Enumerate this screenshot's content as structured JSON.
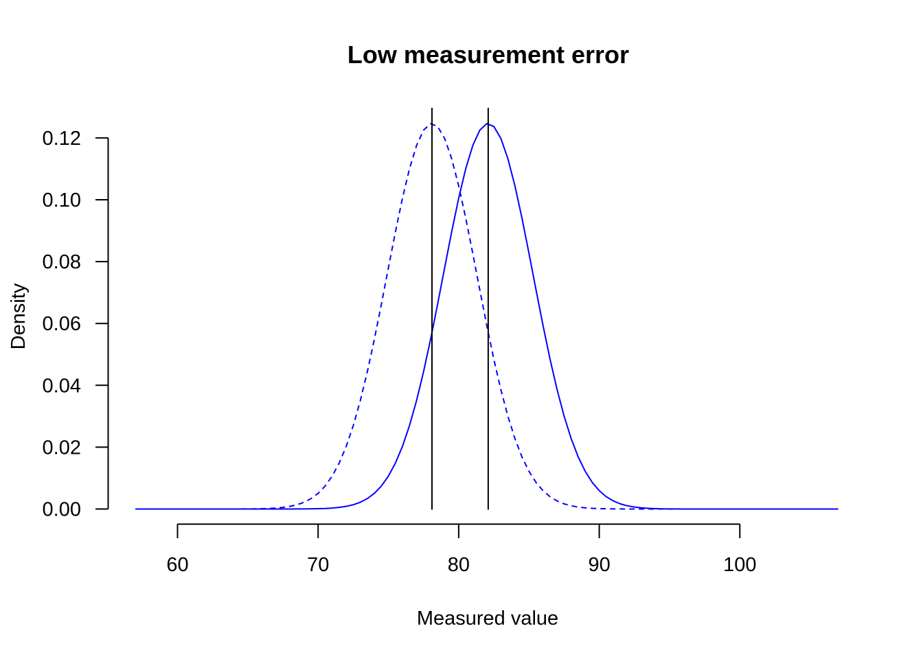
{
  "chart_data": {
    "type": "line",
    "title": "Low measurement error",
    "xlabel": "Measured value",
    "ylabel": "Density",
    "xlim": [
      57,
      107
    ],
    "ylim": [
      0,
      0.125
    ],
    "x_ticks": [
      "60",
      "70",
      "80",
      "90",
      "100"
    ],
    "y_ticks": [
      "0.00",
      "0.02",
      "0.04",
      "0.06",
      "0.08",
      "0.10",
      "0.12"
    ],
    "grid": false,
    "legend": "none",
    "colors": {
      "series": "#0000ff",
      "vlines": "#000000",
      "axes": "#000000"
    },
    "vertical_lines": [
      78.1,
      82.1
    ],
    "series": [
      {
        "style": "dashed",
        "distribution": "normal",
        "mean": 78.1,
        "sd": 3.2,
        "x_range": [
          57,
          107
        ]
      },
      {
        "style": "solid",
        "distribution": "normal",
        "mean": 82.1,
        "sd": 3.2,
        "x_range": [
          57,
          107
        ]
      }
    ]
  }
}
